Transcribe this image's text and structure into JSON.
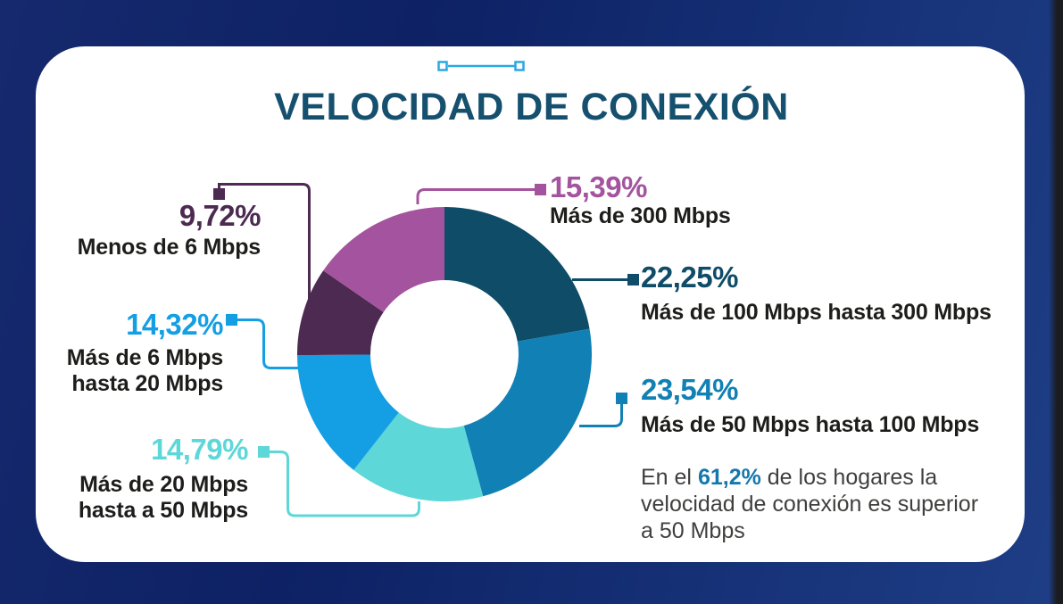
{
  "title": "VELOCIDAD DE CONEXIÓN",
  "title_color": "#16506f",
  "accent_color": "#29a9e0",
  "card_bg": "#ffffff",
  "label_text_color": "#1d1d1b",
  "chart_data": {
    "type": "pie",
    "subtype": "donut",
    "title": "VELOCIDAD DE CONEXIÓN",
    "units": "percent",
    "direction": "clockwise",
    "start_angle_deg": 0,
    "inner_radius_ratio": 0.5,
    "series": [
      {
        "id": "mas-100-hasta-300",
        "label": "Más de 100 Mbps hasta 300 Mbps",
        "label_lines": [
          "Más de 100 Mbps hasta 300 Mbps"
        ],
        "value": 22.25,
        "display": "22,25%",
        "color": "#0e4c68"
      },
      {
        "id": "mas-50-hasta-100",
        "label": "Más de 50 Mbps hasta 100 Mbps",
        "label_lines": [
          "Más de 50 Mbps hasta 100 Mbps"
        ],
        "value": 23.54,
        "display": "23,54%",
        "color": "#1180b4"
      },
      {
        "id": "mas-20-hasta-50",
        "label": "Más de 20 Mbps hasta a 50 Mbps",
        "label_lines": [
          "Más de 20 Mbps",
          "hasta a 50 Mbps"
        ],
        "value": 14.79,
        "display": "14,79%",
        "color": "#5ed7d8"
      },
      {
        "id": "mas-6-hasta-20",
        "label": "Más de 6 Mbps hasta 20 Mbps",
        "label_lines": [
          "Más de 6 Mbps",
          "hasta 20 Mbps"
        ],
        "value": 14.32,
        "display": "14,32%",
        "color": "#149fe4"
      },
      {
        "id": "menos-6",
        "label": "Menos de 6 Mbps",
        "label_lines": [
          "Menos de 6 Mbps"
        ],
        "value": 9.72,
        "display": "9,72%",
        "color": "#4d2a52"
      },
      {
        "id": "mas-300",
        "label": "Más de 300 Mbps",
        "label_lines": [
          "Más de 300 Mbps"
        ],
        "value": 15.39,
        "display": "15,39%",
        "color": "#a4549e"
      }
    ]
  },
  "note": {
    "line1_pre": "En el ",
    "highlight": "61,2%",
    "line1_post": " de los hogares la",
    "line2": "velocidad de conexión es superior",
    "line3": "a 50 Mbps",
    "highlight_color": "#1478ad",
    "text_color": "#3f3f3e"
  }
}
